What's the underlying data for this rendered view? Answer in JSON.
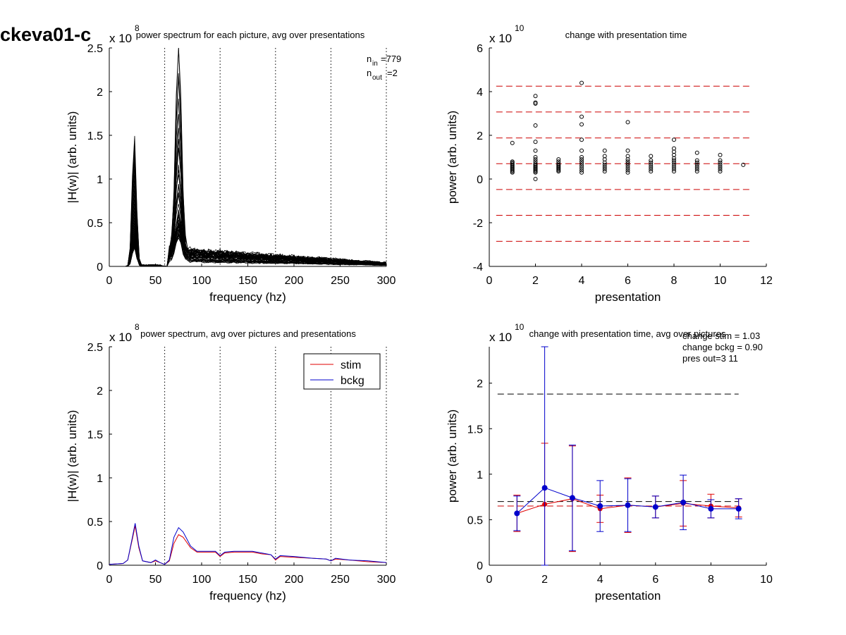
{
  "figure_label": "ckeva01-c",
  "chart_data": [
    {
      "type": "line",
      "title": "power spectrum for each picture, avg over presentations",
      "xlabel": "frequency (hz)",
      "ylabel": "|H(w)| (arb. units)",
      "multiplier": "x 10",
      "multiplier_exp": "8",
      "xlim": [
        0,
        300
      ],
      "ylim": [
        0,
        2.5
      ],
      "xticks": [
        0,
        50,
        100,
        150,
        200,
        250,
        300
      ],
      "yticks": [
        0,
        0.5,
        1,
        1.5,
        2,
        2.5
      ],
      "vlines": [
        60,
        120,
        180,
        240,
        300
      ],
      "line_color": "#000000",
      "curves_shown": 46,
      "peak_values": [
        {
          "freq": 27,
          "value": 1.53
        },
        {
          "freq": 75,
          "value": 2.47
        }
      ],
      "annotation": {
        "n_in_label": "n",
        "n_in_sub": "in",
        "n_in_value": "=779",
        "n_out_label": "n",
        "n_out_sub": "out",
        "n_out_value": "=2"
      }
    },
    {
      "type": "scatter",
      "title": "change with presentation time",
      "xlabel": "presentation",
      "ylabel": "power (arb. units)",
      "multiplier": "x 10",
      "multiplier_exp": "10",
      "xlim": [
        0,
        12
      ],
      "ylim": [
        -4,
        6
      ],
      "xticks": [
        0,
        2,
        4,
        6,
        8,
        10,
        12
      ],
      "yticks": [
        -4,
        -2,
        0,
        2,
        4,
        6
      ],
      "hlines": [
        4.25,
        3.07,
        1.88,
        0.7,
        -0.48,
        -1.66,
        -2.85
      ],
      "hline_color": "#cc0000",
      "marker": "open-circle",
      "points": [
        {
          "x": 1,
          "y": [
            0.3,
            0.35,
            0.4,
            0.45,
            0.5,
            0.55,
            0.6,
            0.65,
            0.7,
            0.75,
            0.8,
            1.65
          ]
        },
        {
          "x": 2,
          "y": [
            0.0,
            0.3,
            0.35,
            0.4,
            0.45,
            0.5,
            0.55,
            0.6,
            0.65,
            0.7,
            0.8,
            0.9,
            1.0,
            1.3,
            1.7,
            2.45,
            3.45,
            3.5,
            3.8
          ]
        },
        {
          "x": 3,
          "y": [
            0.35,
            0.4,
            0.45,
            0.5,
            0.55,
            0.6,
            0.65,
            0.7,
            0.8,
            0.9
          ]
        },
        {
          "x": 4,
          "y": [
            0.3,
            0.4,
            0.5,
            0.6,
            0.7,
            0.8,
            0.9,
            1.0,
            1.3,
            1.8,
            2.5,
            2.85,
            4.4
          ]
        },
        {
          "x": 5,
          "y": [
            0.35,
            0.45,
            0.55,
            0.65,
            0.75,
            0.9,
            1.05,
            1.3
          ]
        },
        {
          "x": 6,
          "y": [
            0.3,
            0.4,
            0.5,
            0.6,
            0.7,
            0.8,
            0.9,
            1.05,
            1.3,
            2.6
          ]
        },
        {
          "x": 7,
          "y": [
            0.35,
            0.45,
            0.55,
            0.65,
            0.75,
            0.85,
            1.05
          ]
        },
        {
          "x": 8,
          "y": [
            0.35,
            0.45,
            0.55,
            0.65,
            0.75,
            0.85,
            0.95,
            1.1,
            1.25,
            1.4,
            1.8
          ]
        },
        {
          "x": 9,
          "y": [
            0.35,
            0.45,
            0.55,
            0.65,
            0.75,
            0.85,
            1.2
          ]
        },
        {
          "x": 10,
          "y": [
            0.35,
            0.45,
            0.55,
            0.65,
            0.75,
            0.85,
            1.1
          ]
        },
        {
          "x": 11,
          "y": [
            0.65
          ]
        }
      ]
    },
    {
      "type": "line",
      "title": "power spectrum, avg over pictures and presentations",
      "xlabel": "frequency (hz)",
      "ylabel": "|H(w)| (arb. units)",
      "multiplier": "x 10",
      "multiplier_exp": "8",
      "xlim": [
        0,
        300
      ],
      "ylim": [
        0,
        2.5
      ],
      "xticks": [
        0,
        50,
        100,
        150,
        200,
        250,
        300
      ],
      "yticks": [
        0,
        0.5,
        1,
        1.5,
        2,
        2.5
      ],
      "vlines": [
        60,
        120,
        180,
        240,
        300
      ],
      "legend": "top-right",
      "series": [
        {
          "name": "stim",
          "color": "#e00000",
          "points": [
            [
              0,
              0.01
            ],
            [
              15,
              0.02
            ],
            [
              20,
              0.06
            ],
            [
              25,
              0.3
            ],
            [
              28,
              0.45
            ],
            [
              32,
              0.2
            ],
            [
              36,
              0.05
            ],
            [
              45,
              0.03
            ],
            [
              50,
              0.05
            ],
            [
              55,
              0.03
            ],
            [
              60,
              0.01
            ],
            [
              65,
              0.05
            ],
            [
              70,
              0.25
            ],
            [
              75,
              0.35
            ],
            [
              80,
              0.32
            ],
            [
              88,
              0.2
            ],
            [
              95,
              0.15
            ],
            [
              105,
              0.15
            ],
            [
              115,
              0.15
            ],
            [
              120,
              0.1
            ],
            [
              125,
              0.14
            ],
            [
              135,
              0.15
            ],
            [
              145,
              0.15
            ],
            [
              155,
              0.15
            ],
            [
              165,
              0.13
            ],
            [
              175,
              0.12
            ],
            [
              180,
              0.06
            ],
            [
              185,
              0.1
            ],
            [
              200,
              0.09
            ],
            [
              220,
              0.08
            ],
            [
              235,
              0.07
            ],
            [
              240,
              0.05
            ],
            [
              245,
              0.07
            ],
            [
              260,
              0.06
            ],
            [
              280,
              0.04
            ],
            [
              300,
              0.03
            ]
          ]
        },
        {
          "name": "bckg",
          "color": "#0000cc",
          "points": [
            [
              0,
              0.01
            ],
            [
              15,
              0.02
            ],
            [
              20,
              0.06
            ],
            [
              25,
              0.32
            ],
            [
              28,
              0.48
            ],
            [
              32,
              0.22
            ],
            [
              36,
              0.05
            ],
            [
              45,
              0.03
            ],
            [
              50,
              0.06
            ],
            [
              55,
              0.03
            ],
            [
              60,
              0.01
            ],
            [
              65,
              0.06
            ],
            [
              70,
              0.32
            ],
            [
              75,
              0.43
            ],
            [
              80,
              0.38
            ],
            [
              88,
              0.22
            ],
            [
              95,
              0.16
            ],
            [
              105,
              0.16
            ],
            [
              115,
              0.16
            ],
            [
              120,
              0.11
            ],
            [
              125,
              0.15
            ],
            [
              135,
              0.16
            ],
            [
              145,
              0.16
            ],
            [
              155,
              0.16
            ],
            [
              165,
              0.14
            ],
            [
              175,
              0.12
            ],
            [
              180,
              0.07
            ],
            [
              185,
              0.11
            ],
            [
              200,
              0.1
            ],
            [
              220,
              0.08
            ],
            [
              235,
              0.07
            ],
            [
              240,
              0.05
            ],
            [
              245,
              0.08
            ],
            [
              260,
              0.06
            ],
            [
              280,
              0.05
            ],
            [
              300,
              0.03
            ]
          ]
        }
      ]
    },
    {
      "type": "line",
      "title": "change with presentation time, avg over pictures",
      "xlabel": "presentation",
      "ylabel": "power (arb. units)",
      "multiplier": "x 10",
      "multiplier_exp": "10",
      "xlim": [
        0,
        10
      ],
      "ylim": [
        0,
        2.4
      ],
      "xticks": [
        0,
        2,
        4,
        6,
        8,
        10
      ],
      "yticks": [
        0,
        0.5,
        1,
        1.5,
        2
      ],
      "annotations": [
        "change stim = 1.03",
        "change bckg = 0.90",
        "pres out=3 11"
      ],
      "hlines": [
        {
          "y": 1.88,
          "color": "#000000"
        },
        {
          "y": 0.7,
          "color": "#000000"
        },
        {
          "y": 0.65,
          "color": "#cc0000"
        }
      ],
      "series": [
        {
          "name": "stim",
          "color": "#e00000",
          "x": [
            1,
            2,
            3,
            4,
            5,
            6,
            7,
            8,
            9
          ],
          "y": [
            0.57,
            0.67,
            0.73,
            0.62,
            0.66,
            0.64,
            0.68,
            0.65,
            0.63
          ],
          "err": [
            0.2,
            0.67,
            0.58,
            0.15,
            0.3,
            0.12,
            0.25,
            0.13,
            0.1
          ]
        },
        {
          "name": "bckg",
          "color": "#0000cc",
          "x": [
            1,
            2,
            3,
            4,
            5,
            6,
            7,
            8,
            9
          ],
          "y": [
            0.57,
            0.85,
            0.74,
            0.65,
            0.66,
            0.64,
            0.69,
            0.62,
            0.62
          ],
          "err": [
            0.19,
            1.6,
            0.58,
            0.28,
            0.29,
            0.12,
            0.3,
            0.1,
            0.11
          ]
        }
      ]
    }
  ]
}
